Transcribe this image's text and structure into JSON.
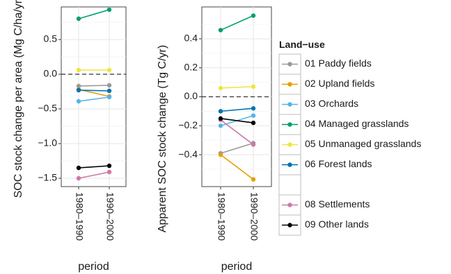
{
  "chart_data": [
    {
      "type": "line",
      "xlabel": "period",
      "ylabel": "SOC stock change per area (Mg C/ha/yr)",
      "categories": [
        "1980–1990",
        "1990–2000"
      ],
      "ylim": [
        -1.62,
        0.97
      ],
      "yticks": [
        {
          "value": 0.5,
          "label": "0.5"
        },
        {
          "value": 0.0,
          "label": "0.0"
        },
        {
          "value": -0.5,
          "label": "−0.5"
        },
        {
          "value": -1.0,
          "label": "−1.0"
        },
        {
          "value": -1.5,
          "label": "−1.5"
        }
      ],
      "minor_yticks": [
        0.75,
        0.25,
        -0.25,
        -0.75,
        -1.25
      ],
      "reference_line": 0,
      "grid": true,
      "series": [
        {
          "name": "01 Paddy fields",
          "values": [
            -0.17,
            -0.16
          ]
        },
        {
          "name": "02 Upland fields",
          "values": [
            -0.22,
            -0.32
          ]
        },
        {
          "name": "03 Orchards",
          "values": [
            -0.39,
            -0.33
          ]
        },
        {
          "name": "04 Managed grasslands",
          "values": [
            0.8,
            0.93
          ]
        },
        {
          "name": "05 Unmanaged grasslands",
          "values": [
            0.06,
            0.06
          ]
        },
        {
          "name": "06 Forest lands",
          "values": [
            -0.23,
            -0.24
          ]
        },
        {
          "name": "08 Settlements",
          "values": [
            -1.5,
            -1.41
          ]
        },
        {
          "name": "09 Other lands",
          "values": [
            -1.35,
            -1.32
          ]
        }
      ]
    },
    {
      "type": "line",
      "xlabel": "period",
      "ylabel": "Apparent SOC stock change (Tg C/yr)",
      "categories": [
        "1980–1990",
        "1990–2000"
      ],
      "ylim": [
        -0.62,
        0.62
      ],
      "yticks": [
        {
          "value": 0.4,
          "label": "0.4"
        },
        {
          "value": 0.2,
          "label": "0.2"
        },
        {
          "value": 0.0,
          "label": "0.0"
        },
        {
          "value": -0.2,
          "label": "−0.2"
        },
        {
          "value": -0.4,
          "label": "−0.4"
        }
      ],
      "minor_yticks": [
        0.5,
        0.3,
        0.1,
        -0.1,
        -0.3,
        -0.5
      ],
      "reference_line": 0,
      "grid": true,
      "series": [
        {
          "name": "01 Paddy fields",
          "values": [
            -0.39,
            -0.32
          ]
        },
        {
          "name": "02 Upland fields",
          "values": [
            -0.4,
            -0.57
          ]
        },
        {
          "name": "03 Orchards",
          "values": [
            -0.2,
            -0.13
          ]
        },
        {
          "name": "04 Managed grasslands",
          "values": [
            0.46,
            0.56
          ]
        },
        {
          "name": "05 Unmanaged grasslands",
          "values": [
            0.06,
            0.07
          ]
        },
        {
          "name": "06 Forest lands",
          "values": [
            -0.1,
            -0.08
          ]
        },
        {
          "name": "08 Settlements",
          "values": [
            -0.16,
            -0.33
          ]
        },
        {
          "name": "09 Other lands",
          "values": [
            -0.15,
            -0.18
          ]
        }
      ]
    }
  ],
  "legend": {
    "title": "Land−use",
    "position": "right",
    "items": [
      {
        "label": "01 Paddy fields",
        "color": "#999999"
      },
      {
        "label": "02 Upland fields",
        "color": "#E69F00"
      },
      {
        "label": "03 Orchards",
        "color": "#56B4E9"
      },
      {
        "label": "04 Managed grasslands",
        "color": "#009E73"
      },
      {
        "label": "05 Unmanaged grasslands",
        "color": "#F0E442"
      },
      {
        "label": "06 Forest lands",
        "color": "#0072B2"
      },
      {
        "label": "",
        "color": "#D55E00",
        "blank": true
      },
      {
        "label": "08 Settlements",
        "color": "#CC79A7"
      },
      {
        "label": "09 Other lands",
        "color": "#000000"
      }
    ]
  }
}
